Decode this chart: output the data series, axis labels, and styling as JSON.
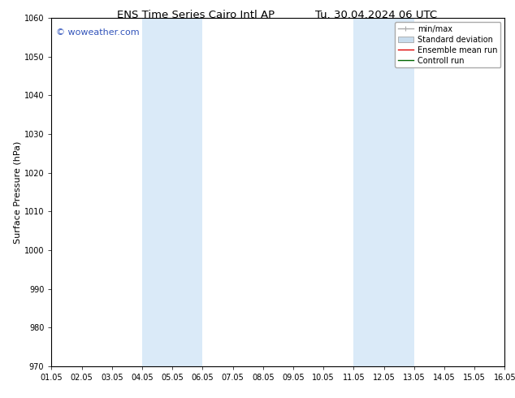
{
  "title_left": "ENS Time Series Cairo Intl AP",
  "title_right": "Tu. 30.04.2024 06 UTC",
  "ylabel": "Surface Pressure (hPa)",
  "ylim": [
    970,
    1060
  ],
  "yticks": [
    970,
    980,
    990,
    1000,
    1010,
    1020,
    1030,
    1040,
    1050,
    1060
  ],
  "xlim_start": 0,
  "xlim_end": 15,
  "xtick_labels": [
    "01.05",
    "02.05",
    "03.05",
    "04.05",
    "05.05",
    "06.05",
    "07.05",
    "08.05",
    "09.05",
    "10.05",
    "11.05",
    "12.05",
    "13.05",
    "14.05",
    "15.05",
    "16.05"
  ],
  "shaded_bands": [
    {
      "xstart": 3.0,
      "xend": 5.0
    },
    {
      "xstart": 10.0,
      "xend": 12.0
    }
  ],
  "shaded_color": "#daeaf8",
  "watermark_text": "© woweather.com",
  "watermark_color": "#3355bb",
  "legend_items": [
    {
      "label": "min/max",
      "color": "#aaaaaa",
      "lw": 1.0
    },
    {
      "label": "Standard deviation",
      "color": "#c8dced",
      "lw": 6.0
    },
    {
      "label": "Ensemble mean run",
      "color": "#dd0000",
      "lw": 1.0
    },
    {
      "label": "Controll run",
      "color": "#006600",
      "lw": 1.0
    }
  ],
  "bg_color": "#ffffff",
  "spine_color": "#000000",
  "title_fontsize": 9.5,
  "ylabel_fontsize": 8,
  "tick_fontsize": 7,
  "watermark_fontsize": 8,
  "legend_fontsize": 7
}
